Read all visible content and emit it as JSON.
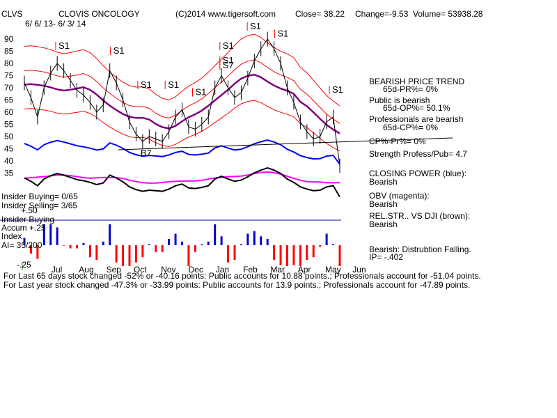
{
  "header": {
    "ticker": "CLVS",
    "company": "CLOVIS ONCOLOGY",
    "copyright": "(C)2014 www.tigersoft.com",
    "close": "Close=  38.22",
    "change": "Change=-9.53",
    "volume": "Volume=  53938.28",
    "date_range": "6/ 6/ 13-  6/ 3/ 14"
  },
  "right_panel": [
    "BEARISH PRICE TREND",
    "65d-PR%= 0%",
    "Public is bearish",
    "65d-OP%= 50.1%",
    "Professionals are bearish",
    "65d-CP%= 0%",
    "CP%-Pr%= 0%",
    "Strength Profess/Pub= 4.7",
    "CLOSING POWER (blue):",
    "Bearish",
    "OBV (magenta):",
    "Bearish",
    "REL.STR.. VS DJI (brown):",
    "Bearish",
    "Bearish: Distrubtion Falling.",
    "IP= -.402"
  ],
  "left_panel": [
    "Insider Buying= 0/65",
    "Insider Selling= 3/65",
    "+.50",
    "Insider Buying",
    "Accum  +.25",
    "Index",
    "AI= 35/200",
    "-.25"
  ],
  "footer": [
    "For Last 65 days stock changed -52% or -40.16 points:  Public accounts for  10.88 points.;  Professionals account for -51.04 points.",
    "For Last year stock changed -47.3% or -33.99 points:  Public accounts for  13.9 points.;  Professionals account for -47.89 points."
  ],
  "colors": {
    "price": "#000000",
    "closing_power": "#0000ff",
    "obv": "#ff00ff",
    "ma": "#800080",
    "band": "#ff0000",
    "accum_pos": "#0000cc",
    "accum_neg": "#ff0000",
    "insider_line": "#0000aa"
  },
  "chart_data": {
    "type": "line",
    "title": "CLOVIS ONCOLOGY",
    "ylim": [
      30,
      95
    ],
    "yticks": [
      90,
      85,
      80,
      75,
      70,
      65,
      60,
      55,
      50,
      45,
      40,
      35
    ],
    "months": [
      "Jul",
      "Aug",
      "Sep",
      "Oct",
      "Nov",
      "Dec",
      "Jan",
      "Feb",
      "Mar",
      "Apr",
      "May",
      "Jun"
    ],
    "price_close": [
      72,
      66,
      58,
      70,
      76,
      80,
      77,
      73,
      69,
      67,
      64,
      60,
      63,
      77,
      72,
      65,
      56,
      51,
      48,
      50,
      49,
      48,
      52,
      58,
      61,
      54,
      53,
      55,
      58,
      70,
      75,
      70,
      66,
      68,
      74,
      81,
      86,
      90,
      86,
      80,
      70,
      64,
      56,
      52,
      49,
      50,
      56,
      58,
      38
    ],
    "signals": [
      {
        "label": "S1",
        "x": "Jul",
        "y": 86
      },
      {
        "label": "S1",
        "x": "Sep",
        "y": 84
      },
      {
        "label": "S1",
        "x": "Oct",
        "y": 70
      },
      {
        "label": "S1",
        "x": "Nov",
        "y": 70
      },
      {
        "label": "S1",
        "x": "Dec",
        "y": 67
      },
      {
        "label": "S1",
        "x": "Jan",
        "y": 86
      },
      {
        "label": "S1",
        "x": "Jan",
        "y": 80
      },
      {
        "label": "S1",
        "x": "Feb",
        "y": 94
      },
      {
        "label": "S1",
        "x": "Mar",
        "y": 91
      },
      {
        "label": "S1",
        "x": "May",
        "y": 68
      },
      {
        "label": "S7",
        "x": "Jan",
        "y": 78
      },
      {
        "label": "B7",
        "x": "Oct",
        "y": 42
      }
    ]
  }
}
